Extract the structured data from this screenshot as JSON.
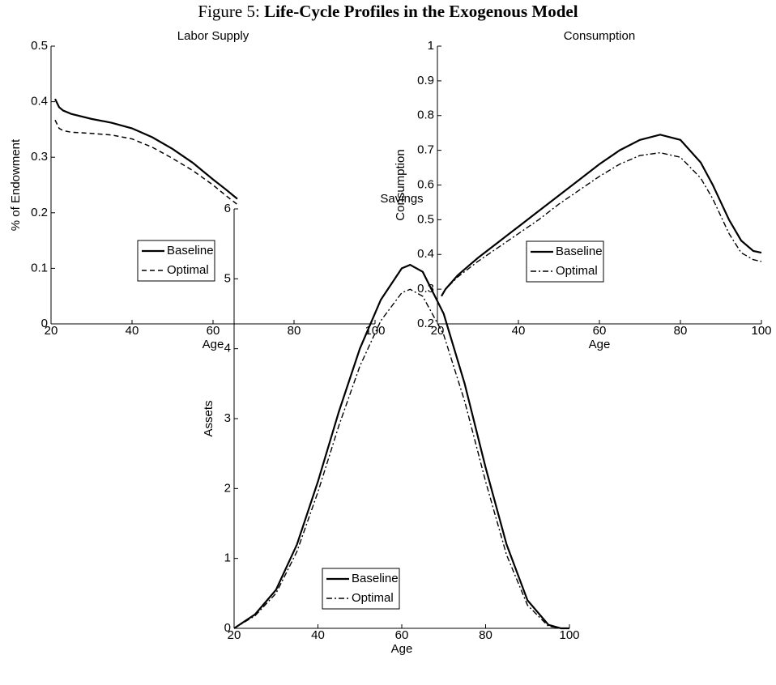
{
  "figure": {
    "label": "Figure 5:",
    "title": "Life-Cycle Profiles in the Exogenous Model"
  },
  "chart_data": [
    {
      "type": "line",
      "title": "Labor Supply",
      "x_label": "Age",
      "y_label": "% of Endowment",
      "x": [
        21,
        22,
        23,
        25,
        30,
        35,
        40,
        45,
        50,
        55,
        60,
        63,
        66
      ],
      "series": [
        {
          "name": "Baseline",
          "color": "#000000",
          "linestyle": "solid",
          "values": [
            0.405,
            0.39,
            0.384,
            0.378,
            0.369,
            0.362,
            0.352,
            0.336,
            0.315,
            0.29,
            0.26,
            0.243,
            0.225
          ]
        },
        {
          "name": "Optimal",
          "color": "#000000",
          "linestyle": "dashed",
          "values": [
            0.367,
            0.352,
            0.348,
            0.345,
            0.343,
            0.34,
            0.333,
            0.318,
            0.298,
            0.276,
            0.25,
            0.232,
            0.215
          ]
        }
      ],
      "xlim": [
        20,
        100
      ],
      "xticks": [
        20,
        40,
        60,
        80,
        100
      ],
      "ylim": [
        0,
        0.5
      ],
      "yticks": [
        0,
        0.1,
        0.2,
        0.3,
        0.4,
        0.5
      ]
    },
    {
      "type": "line",
      "title": "Consumption",
      "x_label": "Age",
      "y_label": "Consumption",
      "x": [
        21,
        22,
        25,
        30,
        35,
        40,
        45,
        50,
        55,
        60,
        65,
        70,
        75,
        80,
        85,
        88,
        90,
        92,
        95,
        98,
        100
      ],
      "series": [
        {
          "name": "Baseline",
          "color": "#000000",
          "linestyle": "solid",
          "values": [
            0.28,
            0.3,
            0.34,
            0.39,
            0.435,
            0.48,
            0.525,
            0.57,
            0.615,
            0.66,
            0.7,
            0.73,
            0.745,
            0.73,
            0.665,
            0.6,
            0.55,
            0.5,
            0.44,
            0.41,
            0.405
          ]
        },
        {
          "name": "Optimal",
          "color": "#000000",
          "linestyle": "dashdot",
          "values": [
            0.28,
            0.3,
            0.335,
            0.38,
            0.42,
            0.46,
            0.5,
            0.545,
            0.585,
            0.625,
            0.66,
            0.685,
            0.693,
            0.68,
            0.62,
            0.56,
            0.51,
            0.46,
            0.405,
            0.385,
            0.38
          ]
        }
      ],
      "xlim": [
        20,
        100
      ],
      "xticks": [
        20,
        40,
        60,
        80,
        100
      ],
      "ylim": [
        0.2,
        1
      ],
      "yticks": [
        0.2,
        0.3,
        0.4,
        0.5,
        0.6,
        0.7,
        0.8,
        0.9,
        1
      ]
    },
    {
      "type": "line",
      "title": "Savings",
      "x_label": "Age",
      "y_label": "Assets",
      "x": [
        20,
        25,
        30,
        35,
        40,
        45,
        50,
        55,
        60,
        62,
        65,
        70,
        75,
        80,
        85,
        90,
        95,
        98,
        100
      ],
      "series": [
        {
          "name": "Baseline",
          "color": "#000000",
          "linestyle": "solid",
          "values": [
            0,
            0.2,
            0.55,
            1.2,
            2.1,
            3.1,
            4.0,
            4.7,
            5.15,
            5.2,
            5.1,
            4.5,
            3.5,
            2.3,
            1.2,
            0.4,
            0.05,
            0,
            0
          ]
        },
        {
          "name": "Optimal",
          "color": "#000000",
          "linestyle": "dashdot",
          "values": [
            0,
            0.18,
            0.5,
            1.1,
            1.95,
            2.9,
            3.75,
            4.4,
            4.8,
            4.85,
            4.75,
            4.2,
            3.25,
            2.1,
            1.05,
            0.33,
            0.03,
            0,
            0
          ]
        }
      ],
      "xlim": [
        20,
        100
      ],
      "xticks": [
        20,
        40,
        60,
        80,
        100
      ],
      "ylim": [
        0,
        6
      ],
      "yticks": [
        0,
        1,
        2,
        3,
        4,
        5,
        6
      ]
    }
  ]
}
